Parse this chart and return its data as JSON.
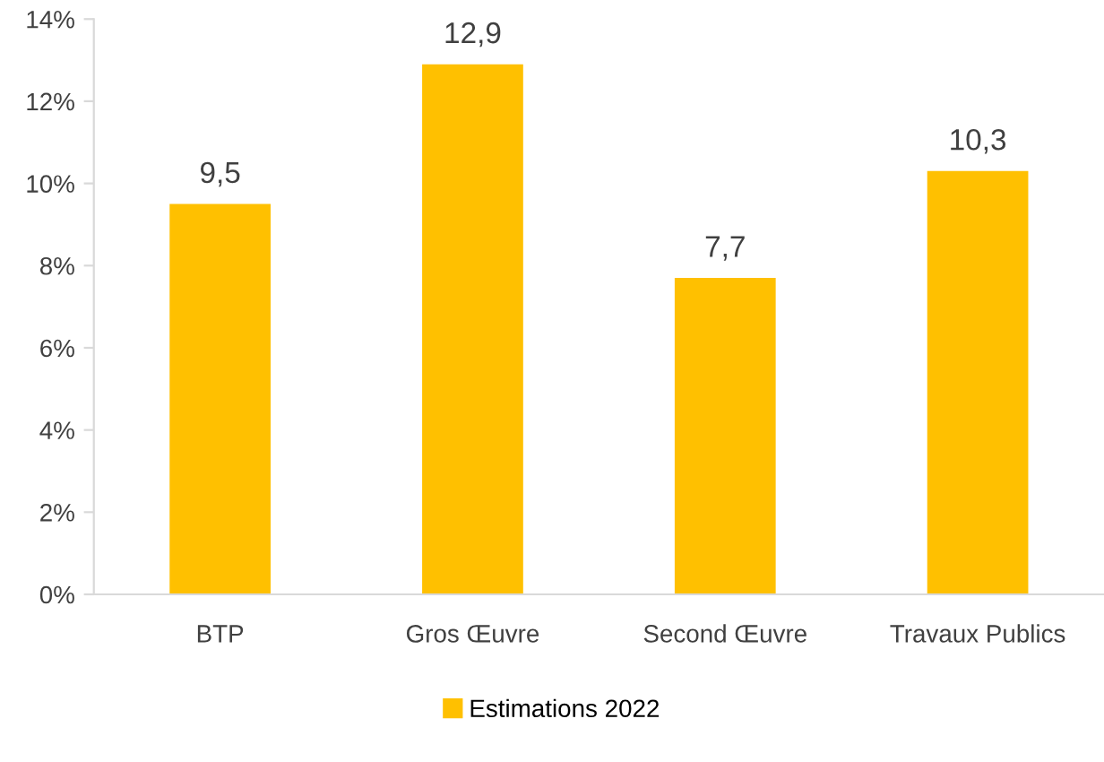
{
  "chart_data": {
    "type": "bar",
    "categories": [
      "BTP",
      "Gros Œuvre",
      "Second Œuvre",
      "Travaux Publics"
    ],
    "series": [
      {
        "name": "Estimations 2022",
        "color": "#ffc000",
        "values": [
          9.5,
          12.9,
          7.7,
          10.3
        ],
        "value_labels": [
          "9,5",
          "12,9",
          "7,7",
          "10,3"
        ]
      }
    ],
    "ylim": [
      0,
      14
    ],
    "yticks": [
      {
        "value": 0,
        "label": "0%"
      },
      {
        "value": 2,
        "label": "2%"
      },
      {
        "value": 4,
        "label": "4%"
      },
      {
        "value": 6,
        "label": "6%"
      },
      {
        "value": 8,
        "label": "8%"
      },
      {
        "value": 10,
        "label": "10%"
      },
      {
        "value": 12,
        "label": "12%"
      },
      {
        "value": 14,
        "label": "14%"
      }
    ],
    "legend": "bottom",
    "grid": false
  }
}
